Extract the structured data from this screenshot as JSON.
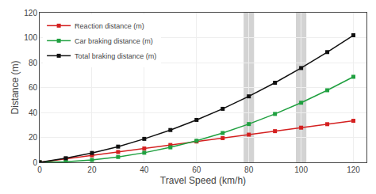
{
  "chart_data": {
    "type": "line",
    "x_label": "Travel Speed (km/h)",
    "y_label": "Distance (m)",
    "x": [
      0,
      10,
      20,
      30,
      40,
      50,
      60,
      70,
      80,
      90,
      100,
      110,
      120
    ],
    "series": [
      {
        "name": "Reaction distance (m)",
        "color": "#d42020",
        "marker": "square",
        "values": [
          0,
          2.8,
          5.6,
          8.3,
          11.1,
          13.9,
          16.7,
          19.4,
          22.2,
          25.0,
          27.8,
          30.6,
          33.3
        ]
      },
      {
        "name": "Car braking distance (m)",
        "color": "#20a040",
        "marker": "square",
        "values": [
          0,
          0.5,
          1.9,
          4.3,
          7.7,
          12.0,
          17.3,
          23.5,
          30.7,
          38.8,
          47.8,
          57.8,
          68.6
        ]
      },
      {
        "name": "Total braking distance (m)",
        "color": "#111111",
        "marker": "square",
        "values": [
          0,
          3.3,
          7.5,
          12.6,
          18.8,
          25.9,
          34.0,
          42.9,
          52.9,
          63.8,
          75.6,
          88.4,
          101.9
        ]
      }
    ],
    "shaded_regions": [
      {
        "x_center": 80,
        "width": 4,
        "color": "#c8c8c8"
      },
      {
        "x_center": 100,
        "width": 4,
        "color": "#c8c8c8"
      }
    ],
    "xlim": [
      0,
      125
    ],
    "ylim": [
      0,
      120
    ],
    "xticks": [
      0,
      20,
      40,
      60,
      80,
      100,
      120
    ],
    "yticks": [
      0,
      20,
      40,
      60,
      80,
      100,
      120
    ],
    "grid": true,
    "legend": "upper left"
  }
}
